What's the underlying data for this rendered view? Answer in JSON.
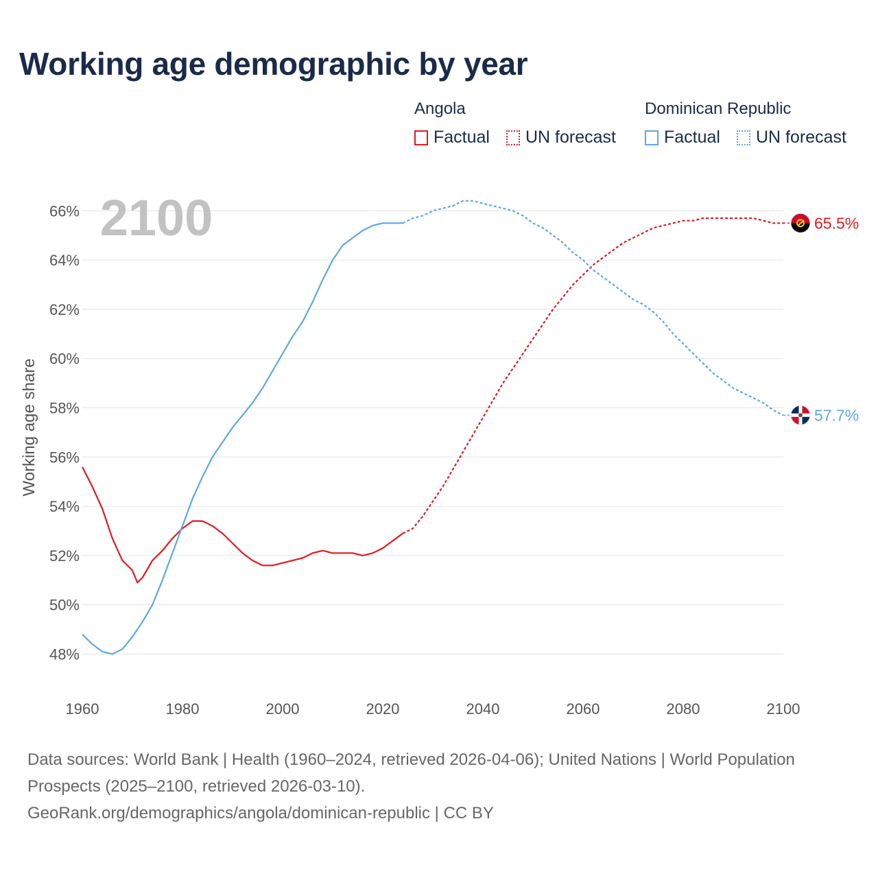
{
  "title": "Working age demographic by year",
  "legend": {
    "groups": [
      {
        "country": "Angola",
        "factual_label": "Factual",
        "forecast_label": "UN forecast",
        "color": "#e0191f"
      },
      {
        "country": "Dominican Republic",
        "factual_label": "Factual",
        "forecast_label": "UN forecast",
        "color": "#5ea7e3"
      }
    ]
  },
  "chart_data": {
    "type": "line",
    "title": "Working age demographic by year",
    "xlabel": "",
    "ylabel": "Working age share",
    "year_watermark": "2100",
    "xlim": [
      1960,
      2100
    ],
    "ylim": [
      47,
      67.5
    ],
    "x_ticks": [
      1960,
      1980,
      2000,
      2020,
      2040,
      2060,
      2080,
      2100
    ],
    "y_ticks": [
      48,
      50,
      52,
      54,
      56,
      58,
      60,
      62,
      64,
      66
    ],
    "y_tick_labels": [
      "48%",
      "50%",
      "52%",
      "54%",
      "56%",
      "58%",
      "60%",
      "62%",
      "64%",
      "66%"
    ],
    "grid": true,
    "factual_range": [
      1960,
      2024
    ],
    "forecast_range": [
      2025,
      2100
    ],
    "series": [
      {
        "name": "Angola",
        "color": "#e0191f",
        "end_label": "65.5%",
        "flag": "angola-flag",
        "points": [
          [
            1960,
            55.6
          ],
          [
            1962,
            54.8
          ],
          [
            1964,
            53.9
          ],
          [
            1966,
            52.7
          ],
          [
            1968,
            51.8
          ],
          [
            1970,
            51.4
          ],
          [
            1971,
            50.9
          ],
          [
            1972,
            51.1
          ],
          [
            1974,
            51.8
          ],
          [
            1976,
            52.2
          ],
          [
            1978,
            52.7
          ],
          [
            1980,
            53.1
          ],
          [
            1982,
            53.4
          ],
          [
            1984,
            53.4
          ],
          [
            1986,
            53.2
          ],
          [
            1988,
            52.9
          ],
          [
            1990,
            52.5
          ],
          [
            1992,
            52.1
          ],
          [
            1994,
            51.8
          ],
          [
            1996,
            51.6
          ],
          [
            1998,
            51.6
          ],
          [
            2000,
            51.7
          ],
          [
            2002,
            51.8
          ],
          [
            2004,
            51.9
          ],
          [
            2006,
            52.1
          ],
          [
            2008,
            52.2
          ],
          [
            2010,
            52.1
          ],
          [
            2012,
            52.1
          ],
          [
            2014,
            52.1
          ],
          [
            2016,
            52.0
          ],
          [
            2018,
            52.1
          ],
          [
            2020,
            52.3
          ],
          [
            2022,
            52.6
          ],
          [
            2024,
            52.9
          ],
          [
            2026,
            53.1
          ],
          [
            2028,
            53.6
          ],
          [
            2030,
            54.2
          ],
          [
            2032,
            54.8
          ],
          [
            2034,
            55.5
          ],
          [
            2036,
            56.2
          ],
          [
            2038,
            56.9
          ],
          [
            2040,
            57.6
          ],
          [
            2042,
            58.3
          ],
          [
            2044,
            59.0
          ],
          [
            2046,
            59.6
          ],
          [
            2048,
            60.2
          ],
          [
            2050,
            60.8
          ],
          [
            2052,
            61.4
          ],
          [
            2054,
            62.0
          ],
          [
            2056,
            62.5
          ],
          [
            2058,
            63.0
          ],
          [
            2060,
            63.4
          ],
          [
            2062,
            63.8
          ],
          [
            2064,
            64.1
          ],
          [
            2066,
            64.4
          ],
          [
            2068,
            64.7
          ],
          [
            2070,
            64.9
          ],
          [
            2072,
            65.1
          ],
          [
            2074,
            65.3
          ],
          [
            2076,
            65.4
          ],
          [
            2078,
            65.5
          ],
          [
            2080,
            65.6
          ],
          [
            2082,
            65.6
          ],
          [
            2084,
            65.7
          ],
          [
            2086,
            65.7
          ],
          [
            2088,
            65.7
          ],
          [
            2090,
            65.7
          ],
          [
            2092,
            65.7
          ],
          [
            2094,
            65.7
          ],
          [
            2096,
            65.6
          ],
          [
            2098,
            65.5
          ],
          [
            2100,
            65.5
          ]
        ]
      },
      {
        "name": "Dominican Republic",
        "color": "#5ea7e3",
        "end_label": "57.7%",
        "flag": "dominican-republic-flag",
        "points": [
          [
            1960,
            48.8
          ],
          [
            1962,
            48.4
          ],
          [
            1964,
            48.1
          ],
          [
            1966,
            48.0
          ],
          [
            1968,
            48.2
          ],
          [
            1970,
            48.7
          ],
          [
            1972,
            49.3
          ],
          [
            1974,
            50.0
          ],
          [
            1976,
            51.0
          ],
          [
            1978,
            52.1
          ],
          [
            1980,
            53.2
          ],
          [
            1982,
            54.3
          ],
          [
            1984,
            55.2
          ],
          [
            1986,
            56.0
          ],
          [
            1988,
            56.6
          ],
          [
            1990,
            57.2
          ],
          [
            1992,
            57.7
          ],
          [
            1994,
            58.2
          ],
          [
            1996,
            58.8
          ],
          [
            1998,
            59.5
          ],
          [
            2000,
            60.2
          ],
          [
            2002,
            60.9
          ],
          [
            2004,
            61.5
          ],
          [
            2006,
            62.3
          ],
          [
            2008,
            63.2
          ],
          [
            2010,
            64.0
          ],
          [
            2012,
            64.6
          ],
          [
            2014,
            64.9
          ],
          [
            2016,
            65.2
          ],
          [
            2018,
            65.4
          ],
          [
            2020,
            65.5
          ],
          [
            2022,
            65.5
          ],
          [
            2024,
            65.5
          ],
          [
            2026,
            65.7
          ],
          [
            2028,
            65.8
          ],
          [
            2030,
            66.0
          ],
          [
            2032,
            66.1
          ],
          [
            2034,
            66.2
          ],
          [
            2036,
            66.4
          ],
          [
            2038,
            66.4
          ],
          [
            2040,
            66.3
          ],
          [
            2042,
            66.2
          ],
          [
            2044,
            66.1
          ],
          [
            2046,
            66.0
          ],
          [
            2048,
            65.8
          ],
          [
            2050,
            65.5
          ],
          [
            2052,
            65.3
          ],
          [
            2054,
            65.0
          ],
          [
            2056,
            64.7
          ],
          [
            2058,
            64.3
          ],
          [
            2060,
            64.0
          ],
          [
            2062,
            63.6
          ],
          [
            2064,
            63.3
          ],
          [
            2066,
            63.0
          ],
          [
            2068,
            62.7
          ],
          [
            2070,
            62.4
          ],
          [
            2072,
            62.2
          ],
          [
            2074,
            61.9
          ],
          [
            2076,
            61.5
          ],
          [
            2078,
            61.0
          ],
          [
            2080,
            60.6
          ],
          [
            2082,
            60.2
          ],
          [
            2084,
            59.8
          ],
          [
            2086,
            59.4
          ],
          [
            2088,
            59.1
          ],
          [
            2090,
            58.8
          ],
          [
            2092,
            58.6
          ],
          [
            2094,
            58.4
          ],
          [
            2096,
            58.2
          ],
          [
            2098,
            57.9
          ],
          [
            2100,
            57.7
          ]
        ]
      }
    ]
  },
  "source_text": "Data sources: World Bank | Health (1960–2024, retrieved 2026-04-06); United Nations | World Population Prospects (2025–2100, retrieved 2026-03-10).",
  "source_link": "GeoRank.org/demographics/angola/dominican-republic | CC BY"
}
